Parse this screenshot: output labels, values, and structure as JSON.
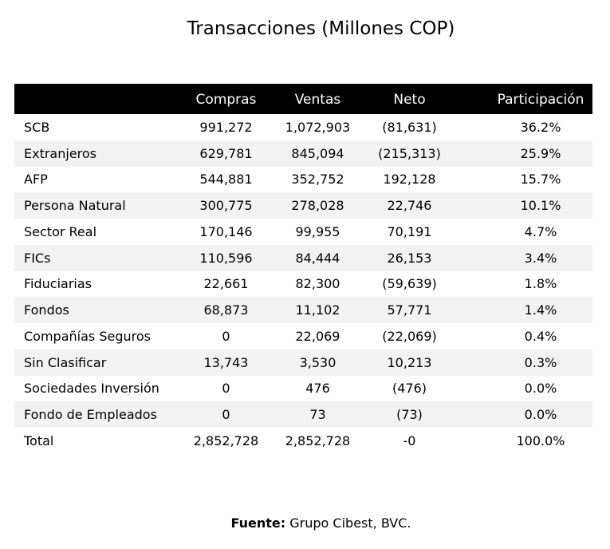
{
  "chart_data": {
    "type": "table",
    "title": "Transacciones (Millones COP)",
    "columns": [
      "",
      "Compras",
      "Ventas",
      "Neto",
      "Participación"
    ],
    "rows": [
      [
        "SCB",
        "991,272",
        "1,072,903",
        "(81,631)",
        "36.2%"
      ],
      [
        "Extranjeros",
        "629,781",
        "845,094",
        "(215,313)",
        "25.9%"
      ],
      [
        "AFP",
        "544,881",
        "352,752",
        "192,128",
        "15.7%"
      ],
      [
        "Persona Natural",
        "300,775",
        "278,028",
        "22,746",
        "10.1%"
      ],
      [
        "Sector Real",
        "170,146",
        "99,955",
        "70,191",
        "4.7%"
      ],
      [
        "FICs",
        "110,596",
        "84,444",
        "26,153",
        "3.4%"
      ],
      [
        "Fiduciarias",
        "22,661",
        "82,300",
        "(59,639)",
        "1.8%"
      ],
      [
        "Fondos",
        "68,873",
        "11,102",
        "57,771",
        "1.4%"
      ],
      [
        "Compañías Seguros",
        "0",
        "22,069",
        "(22,069)",
        "0.4%"
      ],
      [
        "Sin Clasificar",
        "13,743",
        "3,530",
        "10,213",
        "0.3%"
      ],
      [
        "Sociedades Inversión",
        "0",
        "476",
        "(476)",
        "0.0%"
      ],
      [
        "Fondo de Empleados",
        "0",
        "73",
        "(73)",
        "0.0%"
      ],
      [
        "Total",
        "2,852,728",
        "2,852,728",
        "-0",
        "100.0%"
      ]
    ],
    "header_color": "#000000",
    "header_text_color": "#ffffff",
    "stripe_color": "#f2f2f2"
  },
  "source": {
    "label": "Fuente:",
    "text": "Grupo Cibest, BVC."
  }
}
